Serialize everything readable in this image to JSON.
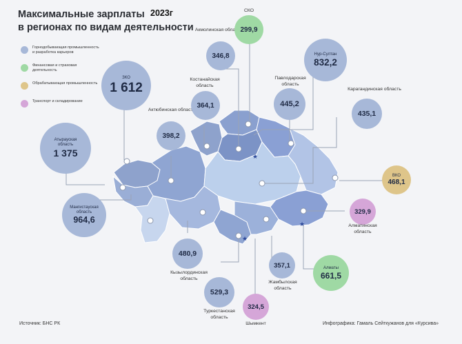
{
  "title_lines": [
    "Максимальные зарплаты",
    "в регионах по видам деятельности"
  ],
  "year": "2023г",
  "colors": {
    "mining": "#a7b8d8",
    "finance": "#9fd9a4",
    "manufacturing": "#dec58a",
    "transport": "#d5a6d8"
  },
  "legend": [
    {
      "text": "Горнодобывающая промышленность и разработка карьеров",
      "category": "mining"
    },
    {
      "text": "Финансовая и страховая деятельность",
      "category": "finance"
    },
    {
      "text": "Обрабатывающая промышленность",
      "category": "manufacturing"
    },
    {
      "text": "Транспорт и складирование",
      "category": "transport"
    }
  ],
  "regions": {
    "zko": {
      "name": "ЗКО",
      "value": "1 612",
      "category": "mining"
    },
    "atyrau": {
      "name": "Атырауская область",
      "value": "1 375",
      "category": "mining"
    },
    "mangystau": {
      "name": "Мангистауская область",
      "value": "964,6",
      "category": "mining"
    },
    "aktobe": {
      "name": "Актюбинская область",
      "value": "398,2",
      "category": "mining"
    },
    "kostanay": {
      "name": "Костанайская область",
      "value": "364,1",
      "category": "mining"
    },
    "akmola": {
      "name": "Акмолинская область",
      "value": "346,8",
      "category": "mining"
    },
    "sko": {
      "name": "СКО",
      "value": "299,9",
      "category": "finance"
    },
    "nursultan": {
      "name": "Нур-Султан",
      "value": "832,2",
      "category": "mining"
    },
    "pavlodar": {
      "name": "Павлодарская область",
      "value": "445,2",
      "category": "mining"
    },
    "karaganda": {
      "name": "Карагандинская область",
      "value": "435,1",
      "category": "mining"
    },
    "vko": {
      "name": "ВКО",
      "value": "468,1",
      "category": "manufacturing"
    },
    "almaty_obl": {
      "name": "Алматинская область",
      "value": "329,9",
      "category": "transport"
    },
    "almaty": {
      "name": "Алматы",
      "value": "661,5",
      "category": "finance"
    },
    "zhambyl": {
      "name": "Жамбылская область",
      "value": "357,1",
      "category": "mining"
    },
    "shymkent": {
      "name": "Шымкент",
      "value": "324,5",
      "category": "transport"
    },
    "turkestan": {
      "name": "Туркестанская область",
      "value": "529,3",
      "category": "mining"
    },
    "kyzylorda": {
      "name": "Кызылординская область",
      "value": "480,9",
      "category": "mining"
    }
  },
  "source": "Источник: БНС РК",
  "credit": "Инфографика: Гамаль Сейткужанов для «Курсива»"
}
